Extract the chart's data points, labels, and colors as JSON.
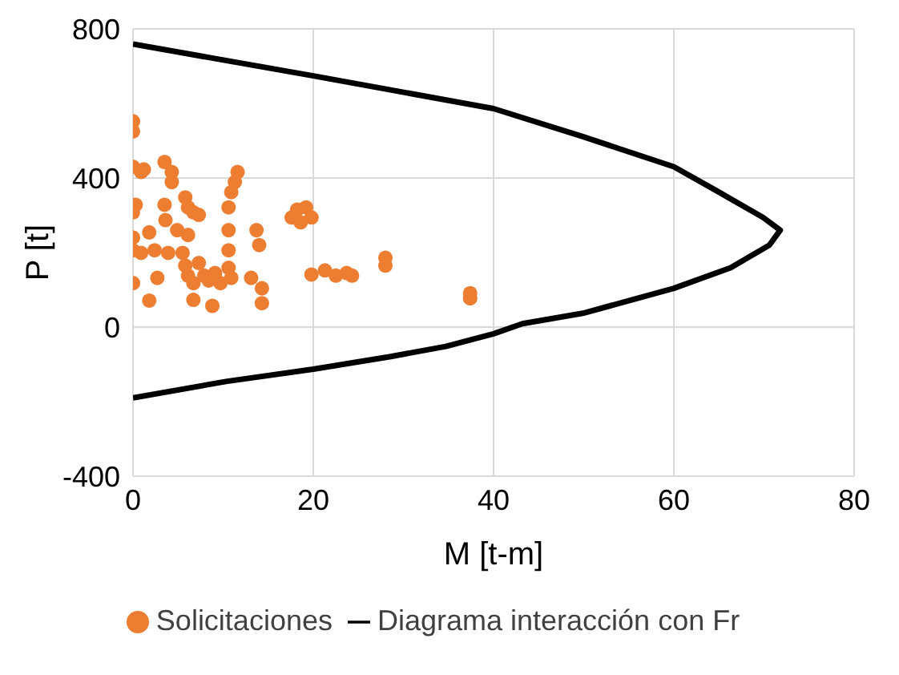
{
  "chart_data": {
    "type": "scatter",
    "xlabel": "M [t-m]",
    "ylabel": "P [t]",
    "xlim": [
      0,
      80
    ],
    "xticks": [
      0,
      20,
      40,
      60,
      80
    ],
    "ylim": [
      -400,
      800
    ],
    "yticks": [
      -400,
      0,
      400,
      800
    ],
    "grid": true,
    "legend": "bottom",
    "series": [
      {
        "name": "Solicitaciones",
        "color": "#ed7d31",
        "marker": "circle",
        "x": [
          0,
          0,
          0,
          0.9,
          1.2,
          3.5,
          4.3,
          4.3,
          11.6,
          11.3,
          10.9,
          0.3,
          0,
          3.5,
          3.6,
          5.8,
          6.1,
          6.7,
          7.3,
          10.6,
          18.2,
          19.2,
          17.6,
          19.8,
          18.6,
          0,
          1.8,
          4.9,
          6.1,
          10.6,
          13.7,
          14,
          0,
          0.9,
          2.4,
          3.9,
          5.5,
          10.6,
          28,
          28,
          19.8,
          21.3,
          22.5,
          23.7,
          24.3,
          5.8,
          7.3,
          6.1,
          7.9,
          9.1,
          10.6,
          10.9,
          6.7,
          8.4,
          9.7,
          13.1,
          14.3,
          14.3,
          0,
          2.7,
          1.8,
          6.7,
          8.8,
          37.4,
          37.4
        ],
        "values": [
          552,
          525,
          430,
          416,
          423,
          443,
          416,
          389,
          416,
          389,
          362,
          328,
          308,
          328,
          287,
          348,
          321,
          308,
          301,
          321,
          315,
          321,
          294,
          294,
          281,
          240,
          254,
          260,
          247,
          260,
          260,
          220,
          206,
          199,
          206,
          199,
          199,
          206,
          186,
          165,
          141,
          152,
          138,
          145,
          138,
          165,
          172,
          138,
          138,
          145,
          159,
          132,
          118,
          125,
          118,
          132,
          104,
          64,
          118,
          132,
          71,
          73,
          57,
          91,
          77
        ]
      },
      {
        "name": "Diagrama interacción con Fr",
        "type": "line",
        "color": "#000000",
        "marker": "none",
        "line_style": "solid",
        "x": [
          0,
          20,
          40,
          49.9,
          60,
          65,
          69.9,
          71.8,
          70.6,
          66.3,
          60,
          49.9,
          43.2,
          40,
          34.7,
          28.6,
          20,
          10.3,
          0
        ],
        "values": [
          759,
          674,
          586,
          511,
          430,
          362,
          294,
          260,
          220,
          159,
          104,
          37,
          9,
          -18,
          -52,
          -79,
          -113,
          -146,
          -190
        ]
      }
    ]
  }
}
